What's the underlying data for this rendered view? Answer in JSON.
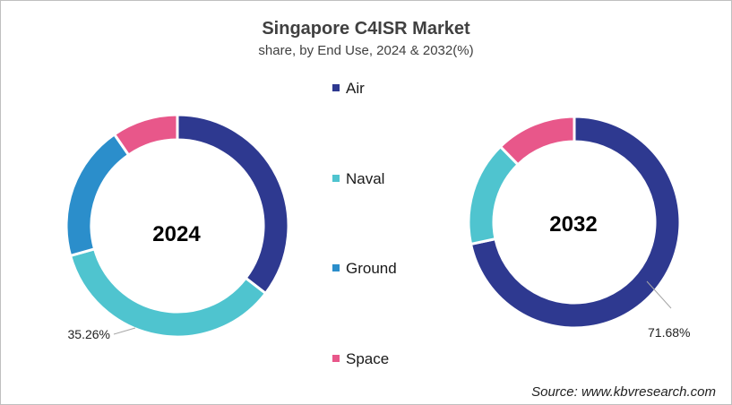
{
  "chart_data": {
    "type": "pie",
    "title": "Singapore C4ISR Market",
    "subtitle": "share, by End Use, 2024 & 2032(%)",
    "legend": {
      "placement": "center",
      "entries": [
        {
          "name": "Air",
          "color": "#2E3990"
        },
        {
          "name": "Naval",
          "color": "#4FC4CF"
        },
        {
          "name": "Ground",
          "color": "#2B8ECB"
        },
        {
          "name": "Space",
          "color": "#E8578A"
        }
      ]
    },
    "categories": [
      "Air",
      "Naval",
      "Ground",
      "Space"
    ],
    "charts": [
      {
        "year": "2024",
        "values": [
          35.4,
          35.26,
          19.74,
          9.6
        ],
        "shown_label": {
          "category": "Naval",
          "text": "35.26%"
        }
      },
      {
        "year": "2032",
        "values": [
          71.68,
          16.0,
          0.0,
          12.32
        ],
        "shown_label": {
          "category": "Air",
          "text": "71.68%"
        }
      }
    ]
  },
  "source": "Source: www.kbvresearch.com"
}
